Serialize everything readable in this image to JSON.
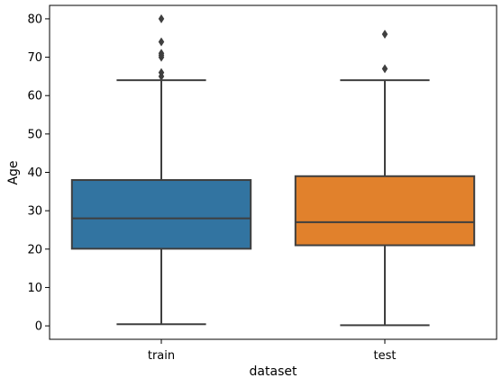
{
  "chart_data": {
    "type": "box",
    "xlabel": "dataset",
    "ylabel": "Age",
    "ylim": [
      -3.5,
      83.5
    ],
    "yticks": [
      0,
      10,
      20,
      30,
      40,
      50,
      60,
      70,
      80
    ],
    "ytick_labels": [
      "0",
      "10",
      "20",
      "30",
      "40",
      "50",
      "60",
      "70",
      "80"
    ],
    "grid": false,
    "categories": [
      "train",
      "test"
    ],
    "boxes": [
      {
        "category": "train",
        "color": "#3274a1",
        "whisker_low": 0.42,
        "q1": 20.1,
        "median": 28.0,
        "q3": 38.0,
        "whisker_high": 64.0,
        "outliers": [
          65.0,
          66.0,
          70.0,
          70.5,
          71.0,
          74.0,
          80.0
        ]
      },
      {
        "category": "test",
        "color": "#e1812c",
        "whisker_low": 0.17,
        "q1": 21.0,
        "median": 27.0,
        "q3": 39.0,
        "whisker_high": 64.0,
        "outliers": [
          67.0,
          76.0
        ]
      }
    ]
  },
  "colors": {
    "line": "#3f3f3f",
    "axes": "#000000"
  }
}
